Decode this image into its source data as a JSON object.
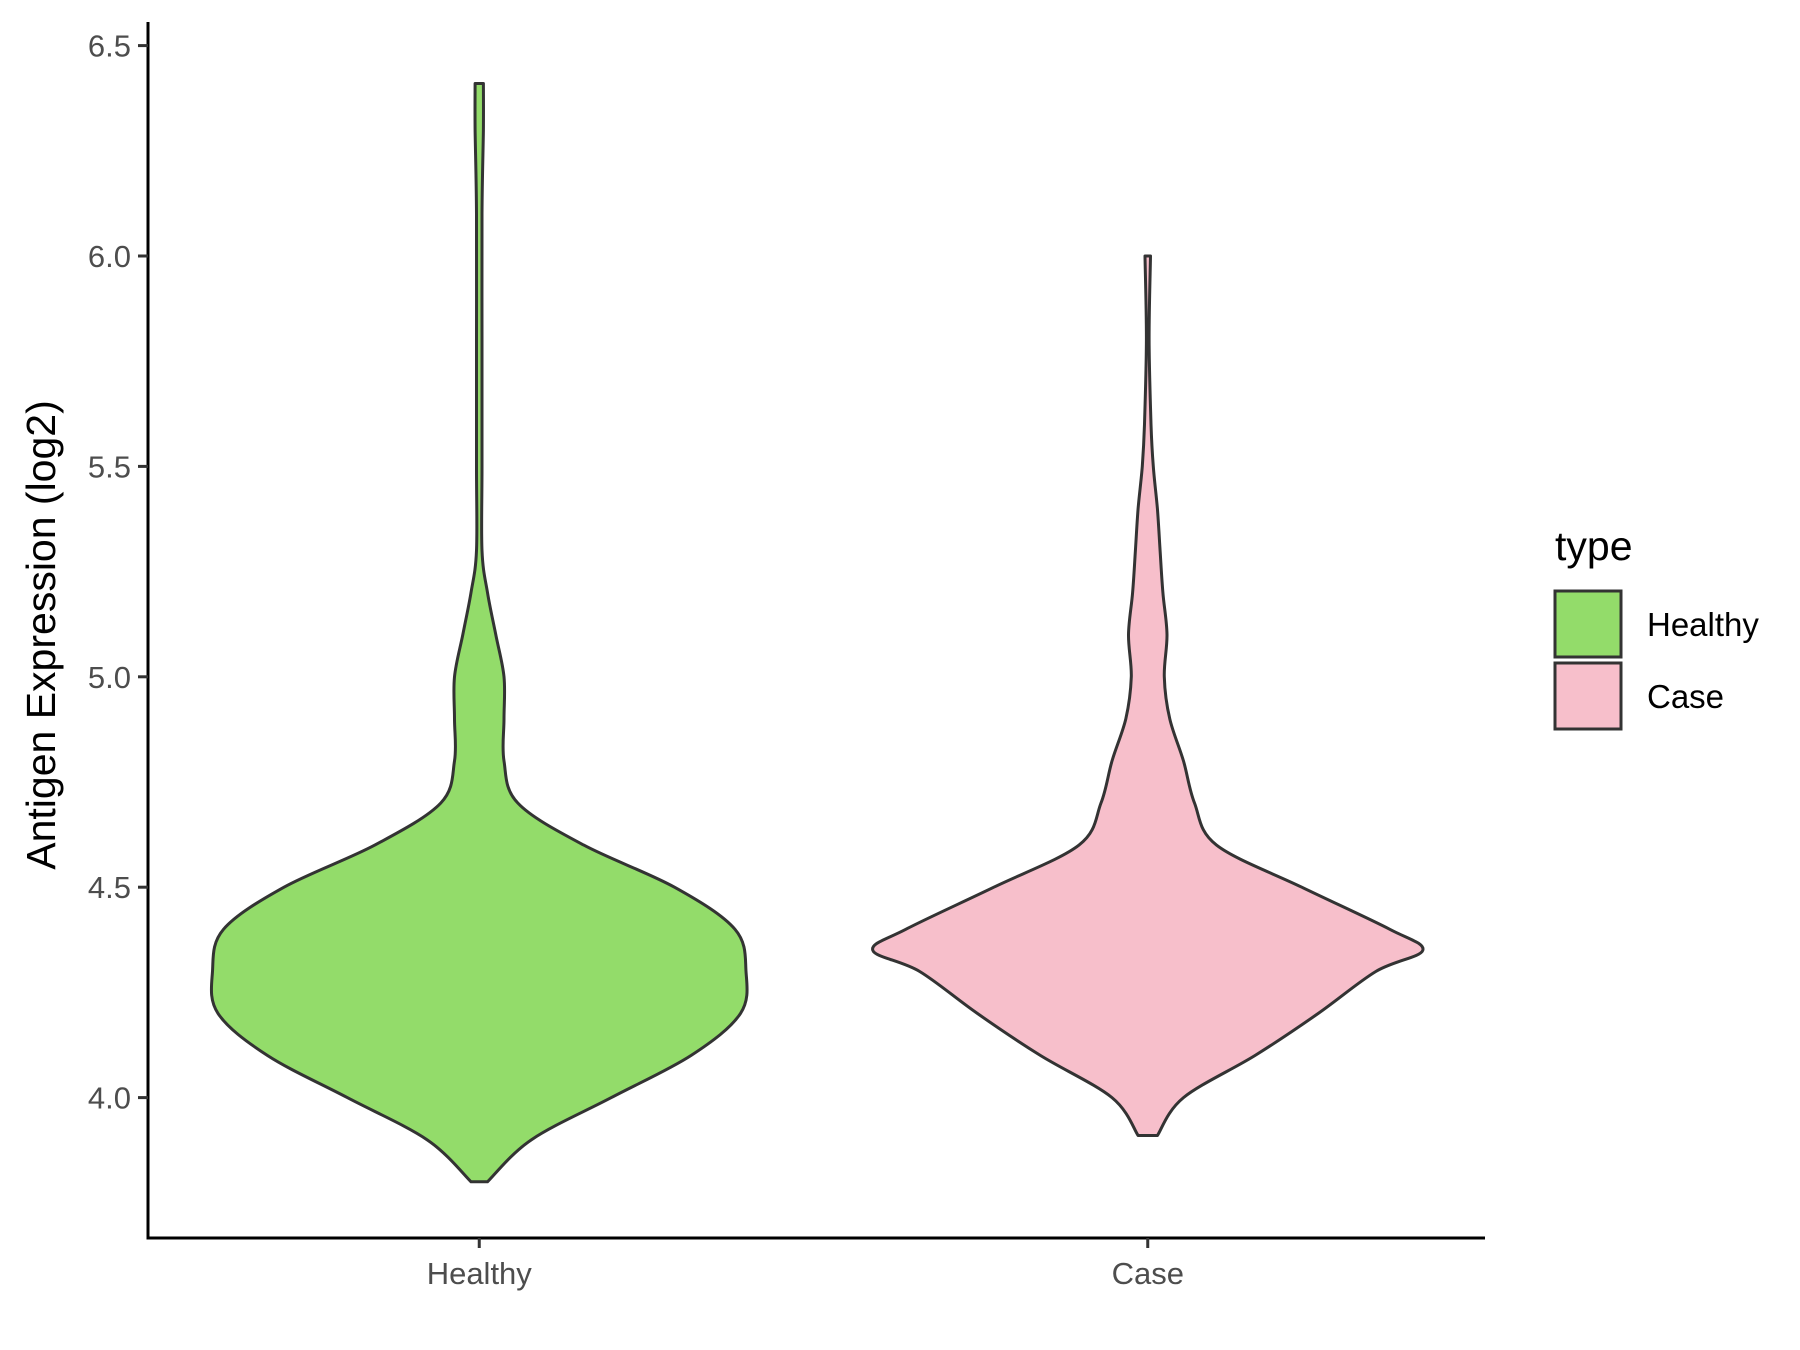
{
  "chart_data": {
    "type": "violin",
    "ylabel": "Antigen Expression (log2)",
    "xlabel": "",
    "categories": [
      "Healthy",
      "Case"
    ],
    "ylim": [
      3.72,
      6.55
    ],
    "yticks": [
      "4.0",
      "4.5",
      "5.0",
      "5.5",
      "6.0",
      "6.5"
    ],
    "grid": false,
    "legend": {
      "title": "type",
      "position": "right",
      "items": [
        {
          "label": "Healthy",
          "color": "#93dc6a"
        },
        {
          "label": "Case",
          "color": "#f7bfcb"
        }
      ]
    },
    "series": [
      {
        "name": "Healthy",
        "color": "#93dc6a",
        "min": 3.8,
        "max": 6.41,
        "density_profile": [
          [
            3.8,
            0.03
          ],
          [
            3.9,
            0.19
          ],
          [
            4.0,
            0.48
          ],
          [
            4.1,
            0.77
          ],
          [
            4.2,
            0.95
          ],
          [
            4.3,
            0.97
          ],
          [
            4.4,
            0.93
          ],
          [
            4.5,
            0.71
          ],
          [
            4.6,
            0.38
          ],
          [
            4.7,
            0.14
          ],
          [
            4.8,
            0.09
          ],
          [
            4.9,
            0.09
          ],
          [
            5.0,
            0.09
          ],
          [
            5.1,
            0.06
          ],
          [
            5.2,
            0.03
          ],
          [
            5.3,
            0.01
          ],
          [
            5.5,
            0.01
          ],
          [
            5.8,
            0.01
          ],
          [
            6.1,
            0.01
          ],
          [
            6.3,
            0.015
          ],
          [
            6.41,
            0.015
          ]
        ]
      },
      {
        "name": "Case",
        "color": "#f7bfcb",
        "min": 3.91,
        "max": 6.0,
        "density_profile": [
          [
            3.91,
            0.035
          ],
          [
            4.0,
            0.13
          ],
          [
            4.1,
            0.39
          ],
          [
            4.2,
            0.62
          ],
          [
            4.3,
            0.83
          ],
          [
            4.35,
            1.0
          ],
          [
            4.4,
            0.88
          ],
          [
            4.5,
            0.56
          ],
          [
            4.6,
            0.25
          ],
          [
            4.7,
            0.17
          ],
          [
            4.8,
            0.13
          ],
          [
            4.9,
            0.08
          ],
          [
            5.0,
            0.06
          ],
          [
            5.1,
            0.07
          ],
          [
            5.2,
            0.055
          ],
          [
            5.3,
            0.045
          ],
          [
            5.4,
            0.035
          ],
          [
            5.5,
            0.02
          ],
          [
            5.6,
            0.012
          ],
          [
            5.8,
            0.005
          ],
          [
            6.0,
            0.01
          ]
        ]
      }
    ]
  }
}
